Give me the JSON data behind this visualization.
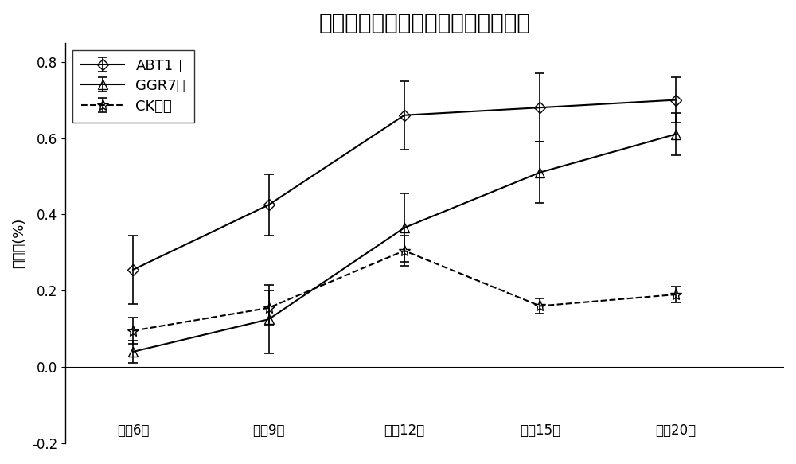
{
  "title": "不同生根粉处理沙生柽柳插穗生根率",
  "ylabel": "生根率(%)",
  "x_labels": [
    "催根6天",
    "催根9天",
    "催根12天",
    "催根15天",
    "催根20天"
  ],
  "x_positions": [
    1,
    2,
    3,
    4,
    5
  ],
  "series": [
    {
      "label": "ABT1号",
      "values": [
        0.255,
        0.425,
        0.66,
        0.68,
        0.7
      ],
      "errors": [
        0.09,
        0.08,
        0.09,
        0.09,
        0.06
      ],
      "color": "#000000",
      "linestyle": "-",
      "marker": "D",
      "marker_size": 7,
      "linewidth": 1.5,
      "fillstyle": "none"
    },
    {
      "label": "GGR7号",
      "values": [
        0.04,
        0.125,
        0.365,
        0.51,
        0.61
      ],
      "errors": [
        0.03,
        0.09,
        0.09,
        0.08,
        0.055
      ],
      "color": "#000000",
      "linestyle": "-",
      "marker": "^",
      "marker_size": 8,
      "linewidth": 1.5,
      "fillstyle": "none"
    },
    {
      "label": "CK对照",
      "values": [
        0.095,
        0.155,
        0.305,
        0.16,
        0.19
      ],
      "errors": [
        0.035,
        0.045,
        0.04,
        0.02,
        0.02
      ],
      "color": "#000000",
      "linestyle": "--",
      "marker": "*",
      "marker_size": 10,
      "linewidth": 1.5,
      "fillstyle": "none"
    }
  ],
  "ylim": [
    -0.2,
    0.85
  ],
  "yticks": [
    -0.2,
    0.0,
    0.2,
    0.4,
    0.6,
    0.8
  ],
  "background_color": "#ffffff",
  "title_fontsize": 20,
  "label_fontsize": 13,
  "tick_fontsize": 12,
  "legend_fontsize": 13
}
